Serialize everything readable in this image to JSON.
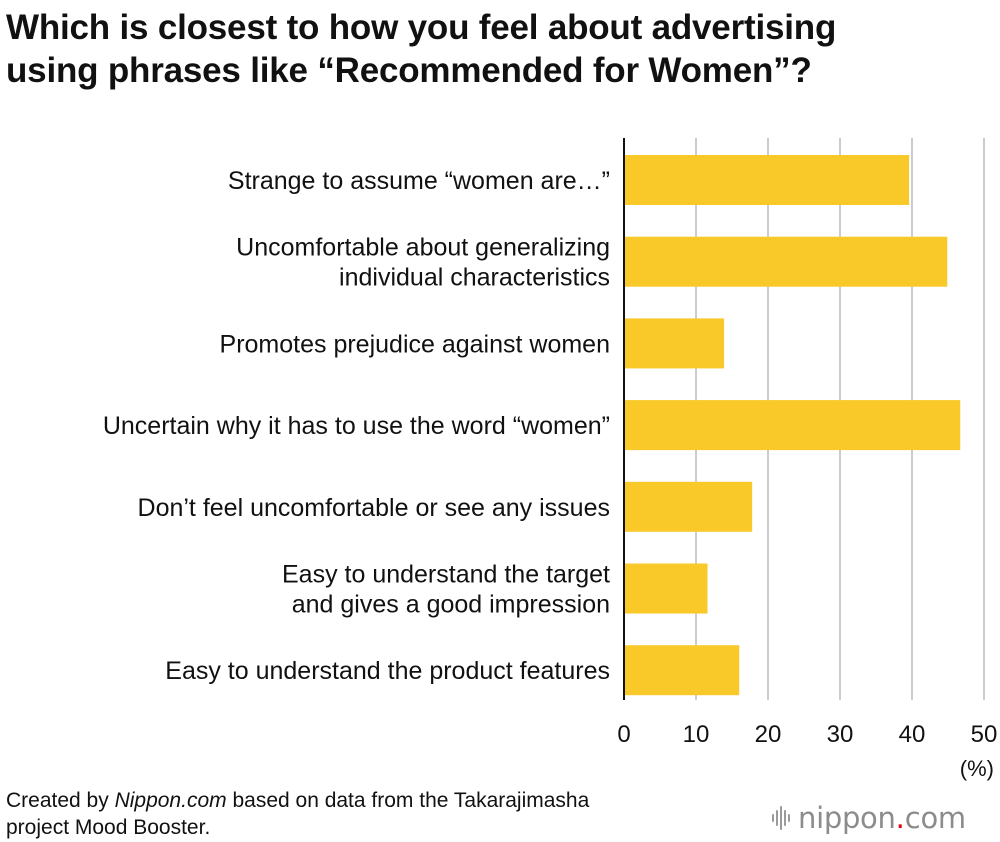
{
  "title": {
    "line1": "Which is closest to how you feel about advertising",
    "line2": "using phrases like “Recommended for Women”?"
  },
  "chart_data": {
    "type": "bar",
    "orientation": "horizontal",
    "categories": [
      [
        "Strange to assume “women are…”"
      ],
      [
        "Uncomfortable about generalizing",
        "individual characteristics"
      ],
      [
        "Promotes prejudice against women"
      ],
      [
        "Uncertain why it has to use the word “women”"
      ],
      [
        "Don’t feel uncomfortable or see any issues"
      ],
      [
        "Easy to understand the target",
        "and gives a good impression"
      ],
      [
        "Easy to understand the product features"
      ]
    ],
    "values": [
      39.6,
      44.9,
      13.9,
      46.7,
      17.8,
      11.6,
      16.0
    ],
    "xlim": [
      0,
      50
    ],
    "ticks": [
      "0",
      "10",
      "20",
      "30",
      "40",
      "50"
    ],
    "unit": "(%)",
    "grid": true,
    "bar_color": "#f8c928",
    "grid_color": "#cccccc"
  },
  "source": {
    "prefix": "Created by ",
    "site": "Nippon.com",
    "suffix": " based on data from the Takarajimasha",
    "line2": "project Mood Booster."
  },
  "brand": {
    "name": "nippon",
    "dot": ".",
    "tld": "com",
    "icon": "sound-wave-icon"
  }
}
